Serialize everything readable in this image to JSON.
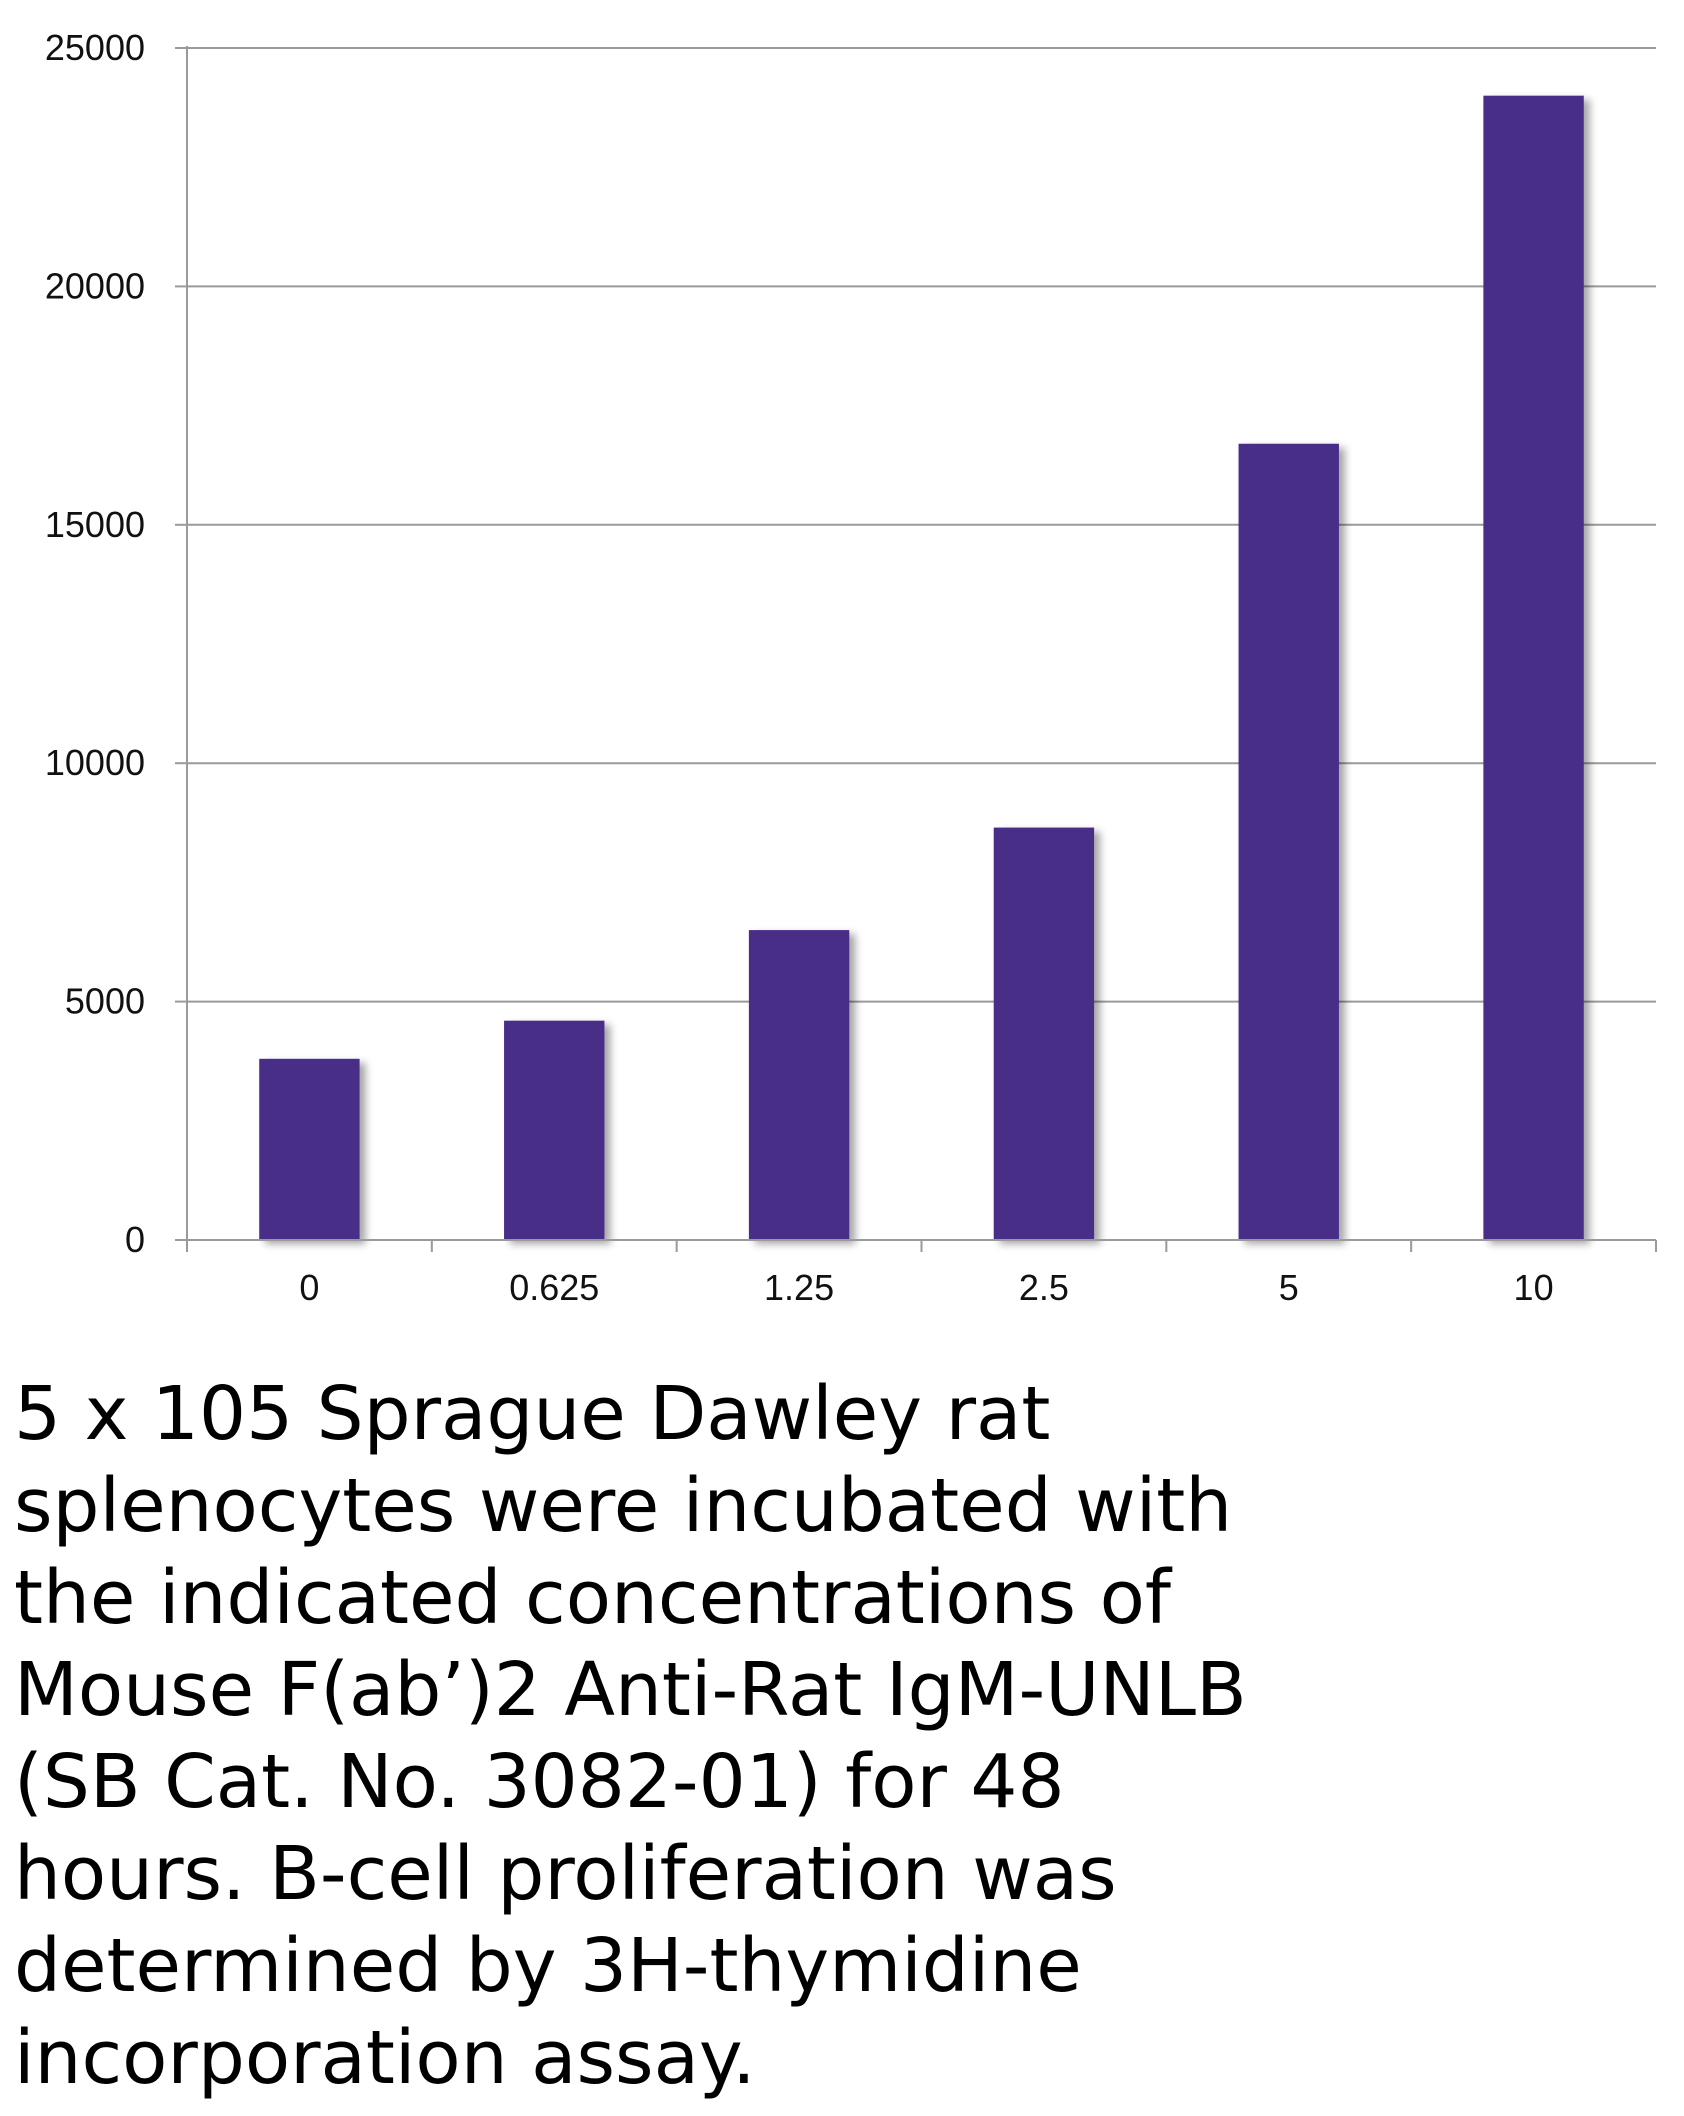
{
  "chart_data": {
    "type": "bar",
    "categories": [
      "0",
      "0.625",
      "1.25",
      "2.5",
      "5",
      "10"
    ],
    "values": [
      3800,
      4600,
      6500,
      8650,
      16700,
      24000
    ],
    "ylim": [
      0,
      25000
    ],
    "yticks": [
      "0",
      "5000",
      "10000",
      "15000",
      "20000",
      "25000"
    ],
    "grid": true,
    "legend": "none",
    "bar_color": "#4a2d88",
    "title": "",
    "xlabel": "",
    "ylabel": ""
  },
  "caption": "5 x 105 Sprague Dawley rat\nsplenocytes were incubated with\nthe indicated concentrations of\nMouse F(ab’)2 Anti-Rat IgM-UNLB\n(SB Cat. No. 3082-01) for 48\nhours.  B-cell proliferation was\ndetermined by 3H-thymidine\nincorporation assay."
}
